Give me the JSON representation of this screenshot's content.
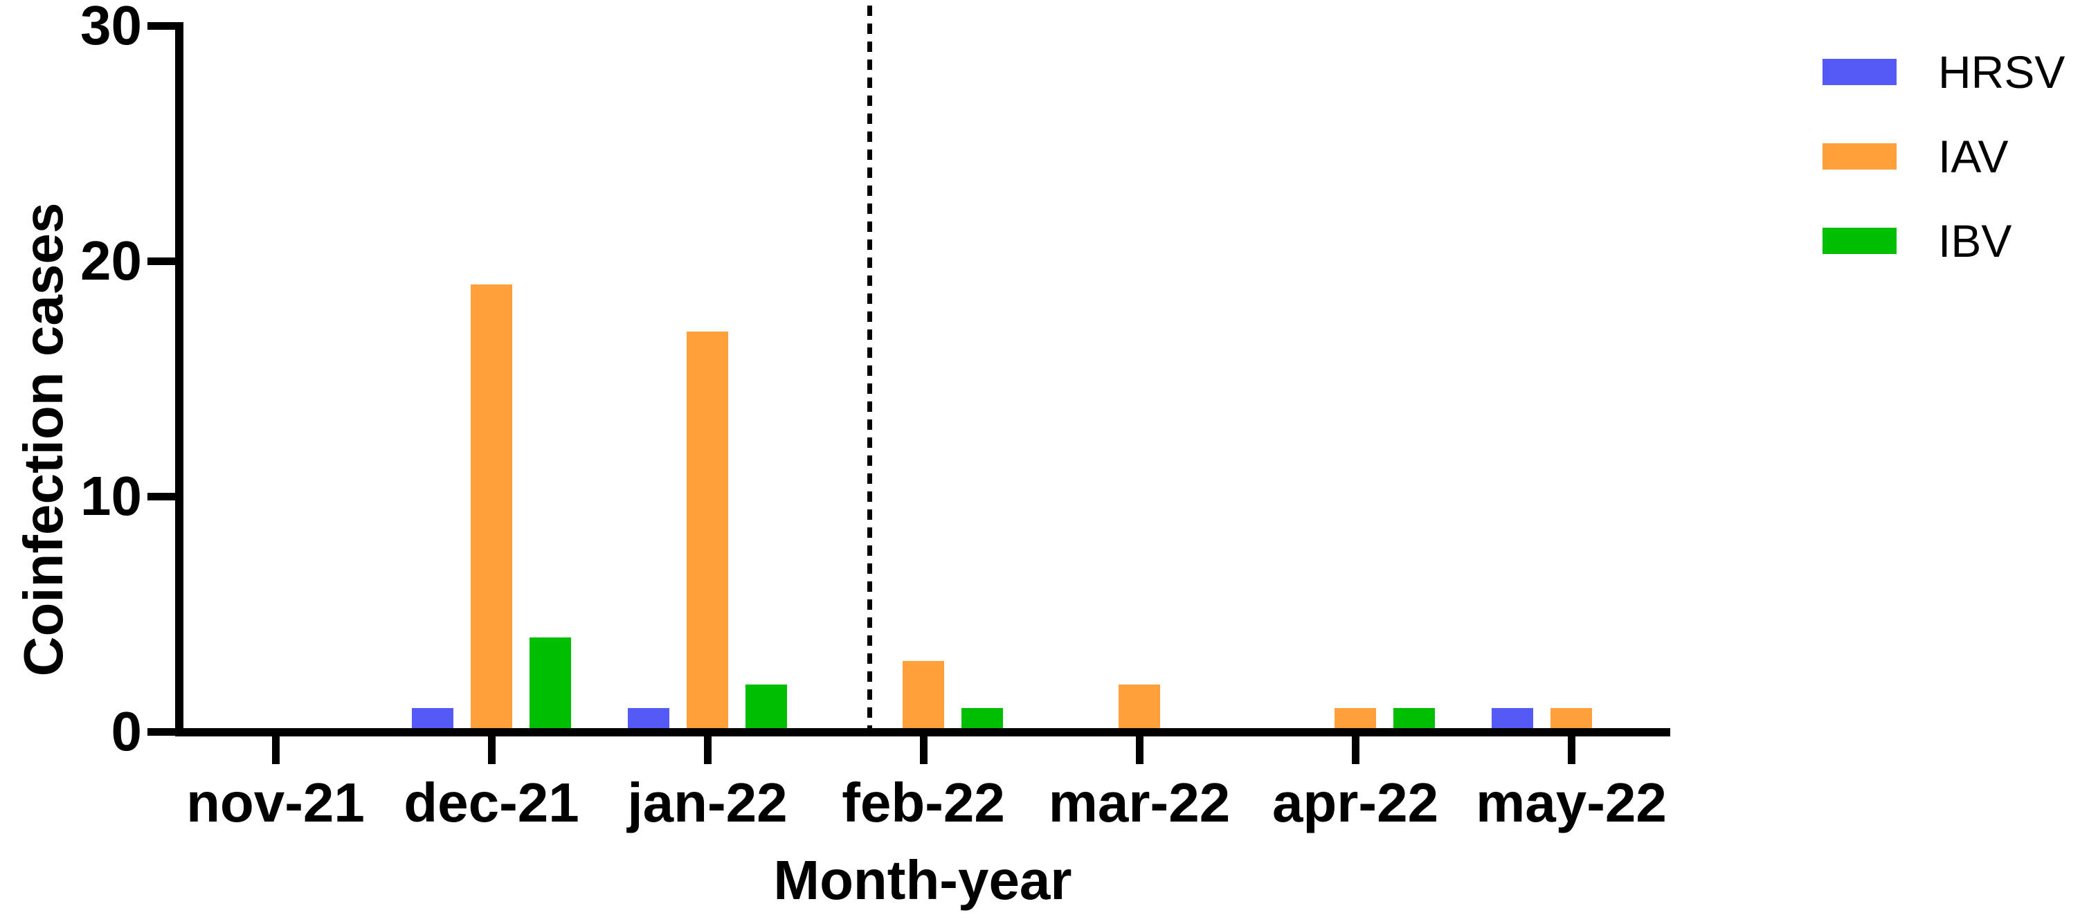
{
  "figure": {
    "background": "#ffffff",
    "axis_color": "#000000",
    "text_color": "#000000"
  },
  "chart_data": {
    "type": "bar",
    "title": "",
    "xlabel": "Month-year",
    "ylabel": "Coinfection cases",
    "categories": [
      "nov-21",
      "dec-21",
      "jan-22",
      "feb-22",
      "mar-22",
      "apr-22",
      "may-22"
    ],
    "series": [
      {
        "name": "HRSV",
        "color": "#5559F5",
        "values": [
          0,
          1,
          1,
          0,
          0,
          0,
          1
        ]
      },
      {
        "name": "IAV",
        "color": "#FFA03A",
        "values": [
          0,
          19,
          17,
          3,
          2,
          1,
          1
        ]
      },
      {
        "name": "IBV",
        "color": "#00BE00",
        "values": [
          0,
          4,
          2,
          1,
          0,
          1,
          0
        ]
      }
    ],
    "ylim": [
      0,
      30
    ],
    "yticks": [
      0,
      10,
      20,
      30
    ],
    "grid": false,
    "legend_position": "top-right",
    "separator": {
      "style": "dashed",
      "between": [
        "jan-22",
        "feb-22"
      ]
    }
  }
}
